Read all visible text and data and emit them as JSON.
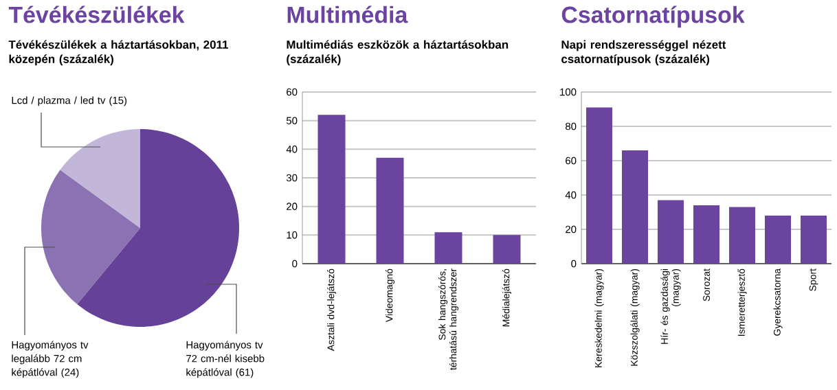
{
  "chart_data": [
    {
      "type": "pie",
      "title": "Tévékészülékek",
      "subtitle": "Tévékészülékek a háztartásokban, 2011 közepén (százalék)",
      "categories": [
        "Hagyományos tv 72 cm-nél kisebb képátlóval",
        "Hagyományos tv legalább 72 cm képátlóval",
        "Lcd / plazma / led tv"
      ],
      "values": [
        61,
        24,
        15
      ],
      "value_labels": [
        "(61)",
        "(24)",
        "(15)"
      ],
      "colors": [
        "#654197",
        "#8a72b3",
        "#c2b6d9"
      ]
    },
    {
      "type": "bar",
      "title": "Multimédia",
      "subtitle": "Multimédiás eszközök a háztartásokban (százalék)",
      "categories": [
        "Asztali dvd-lejátszó",
        "Videomagnó",
        "Sok hangszórós, térhatású hangrendszer",
        "Médialejátszó"
      ],
      "values": [
        52,
        37,
        11,
        10
      ],
      "color": "#6a44a0",
      "ylim": [
        0,
        60
      ],
      "yticks": [
        0,
        10,
        20,
        30,
        40,
        50,
        60
      ],
      "grid": "y"
    },
    {
      "type": "bar",
      "title": "Csatornatípusok",
      "subtitle": "Napi rendszerességgel nézett csatornatípusok (százalék)",
      "categories": [
        "Kereskedelmi (magyar)",
        "Közszolgálati (magyar)",
        "Hír- és gazdasági (magyar)",
        "Sorozat",
        "Ismeretterjesztő",
        "Gyerekcsatorna",
        "Sport"
      ],
      "values": [
        91,
        66,
        37,
        34,
        33,
        28,
        28
      ],
      "color": "#6a44a0",
      "ylim": [
        0,
        100
      ],
      "yticks": [
        0,
        20,
        40,
        60,
        80,
        100
      ],
      "grid": "y"
    }
  ]
}
